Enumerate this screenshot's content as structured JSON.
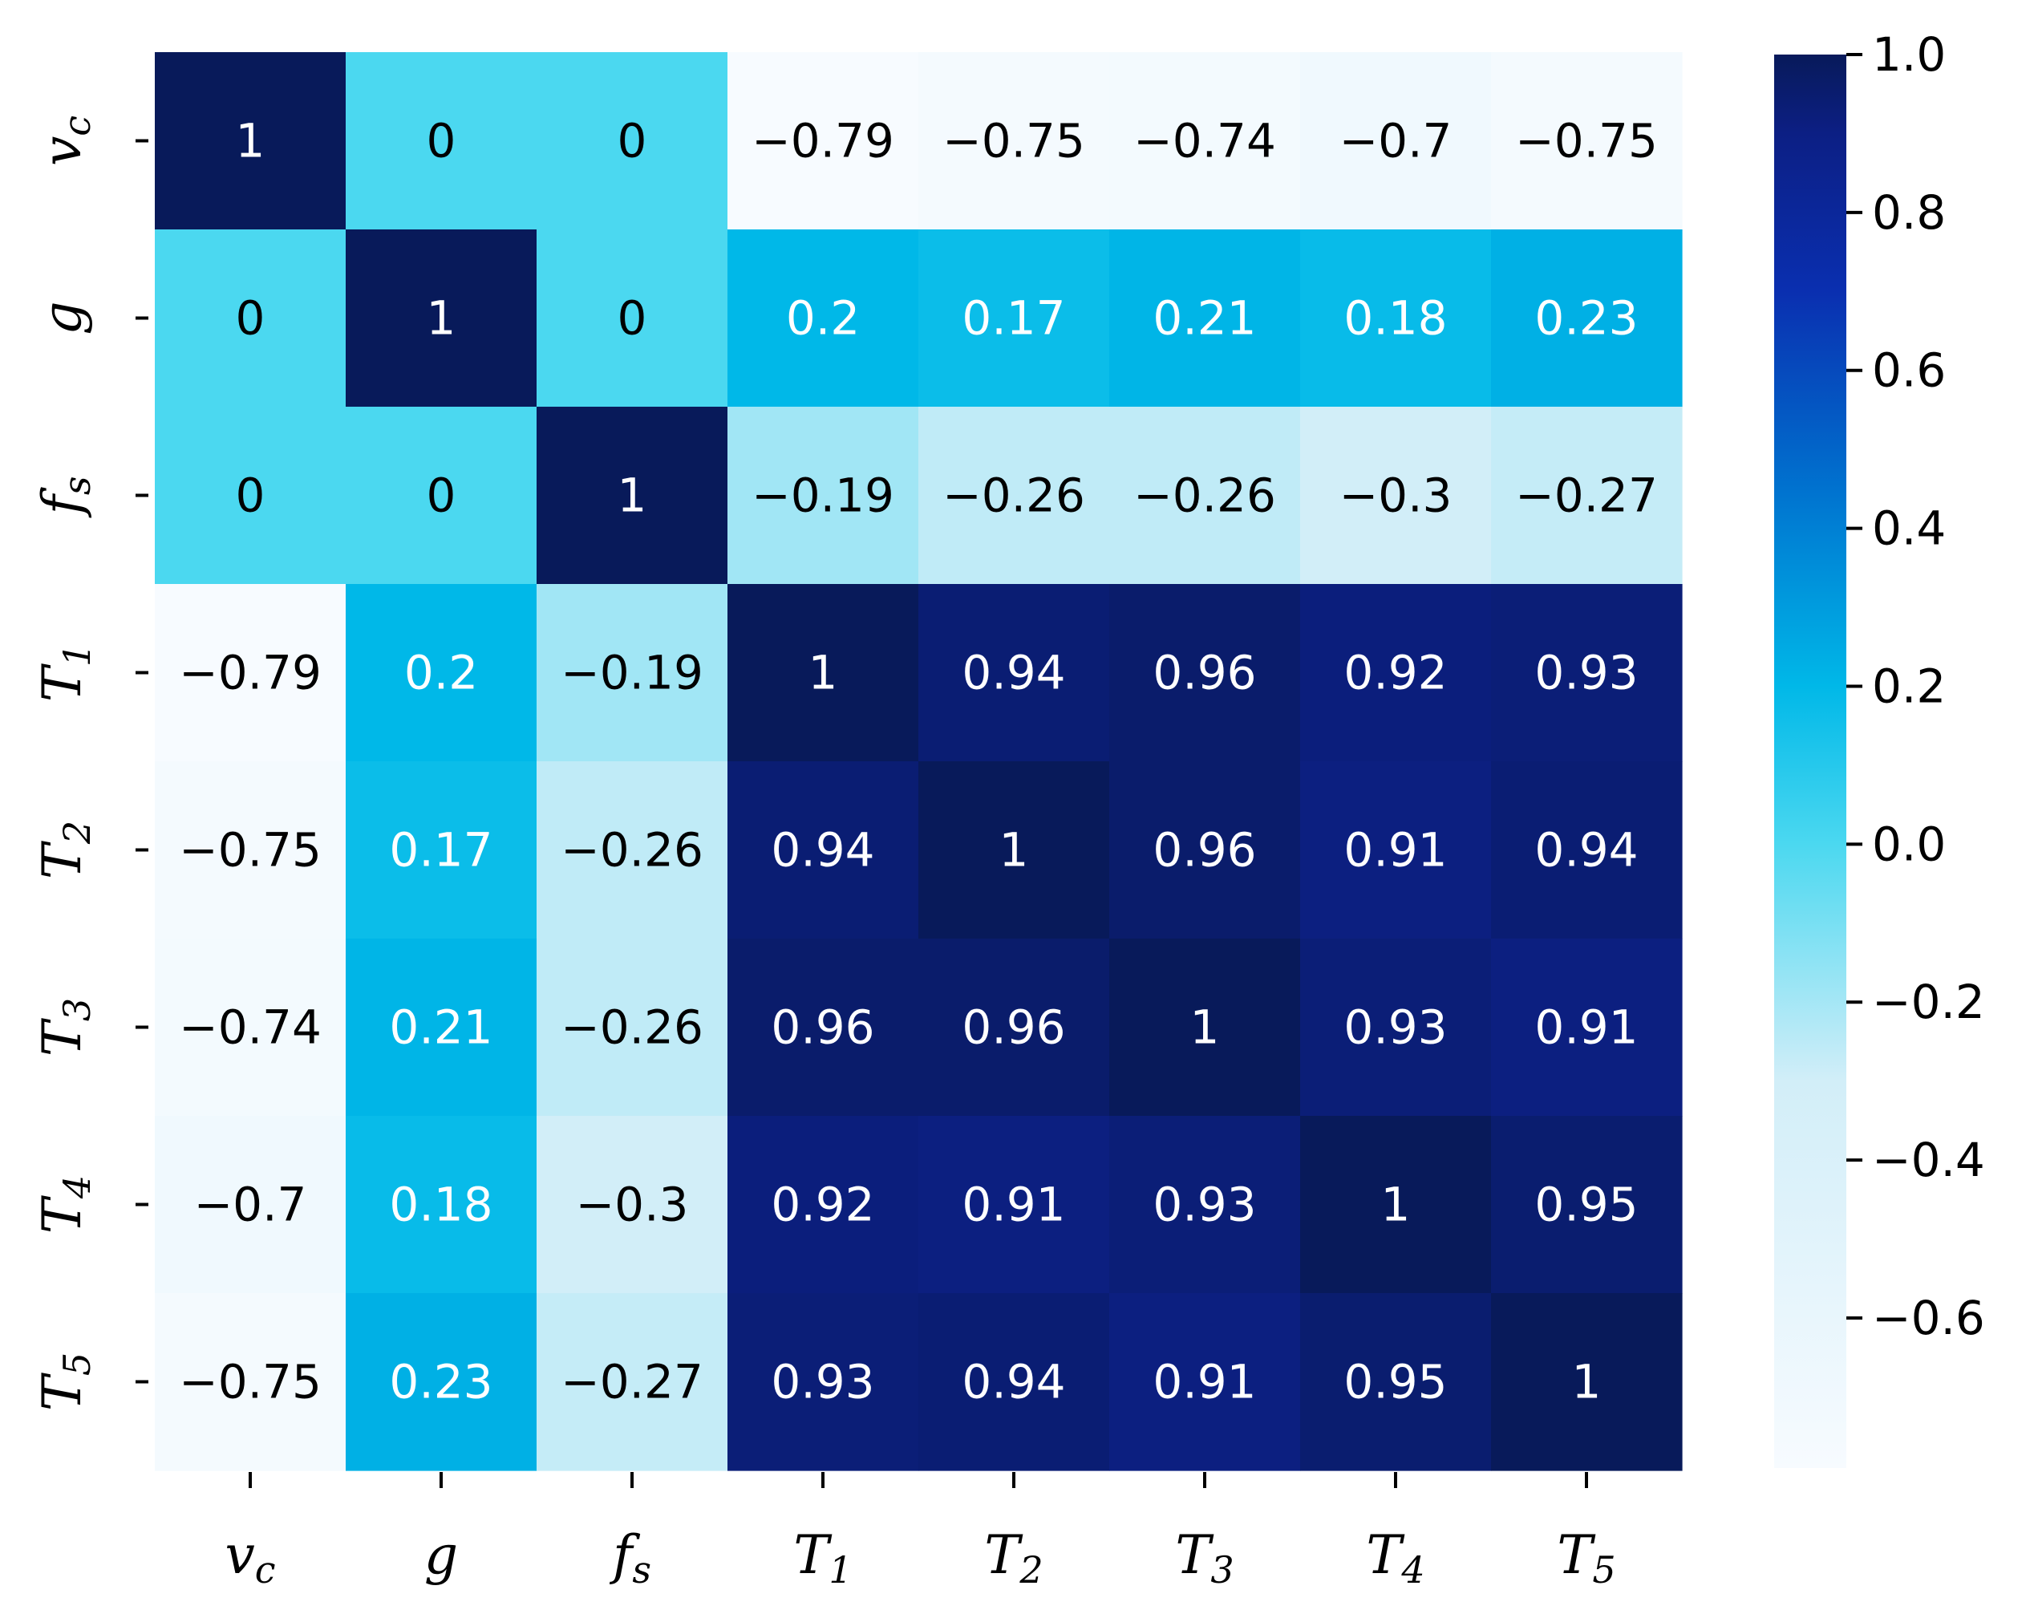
{
  "chart_data": {
    "type": "heatmap",
    "title": "",
    "row_labels": [
      {
        "base": "v",
        "sub": "c"
      },
      {
        "base": "g",
        "sub": ""
      },
      {
        "base": "f",
        "sub": "s"
      },
      {
        "base": "T",
        "sub": "1"
      },
      {
        "base": "T",
        "sub": "2"
      },
      {
        "base": "T",
        "sub": "3"
      },
      {
        "base": "T",
        "sub": "4"
      },
      {
        "base": "T",
        "sub": "5"
      }
    ],
    "col_labels": [
      {
        "base": "v",
        "sub": "c"
      },
      {
        "base": "g",
        "sub": ""
      },
      {
        "base": "f",
        "sub": "s"
      },
      {
        "base": "T",
        "sub": "1"
      },
      {
        "base": "T",
        "sub": "2"
      },
      {
        "base": "T",
        "sub": "3"
      },
      {
        "base": "T",
        "sub": "4"
      },
      {
        "base": "T",
        "sub": "5"
      }
    ],
    "values": [
      [
        1,
        0,
        0,
        -0.79,
        -0.75,
        -0.74,
        -0.7,
        -0.75
      ],
      [
        0,
        1,
        0,
        0.2,
        0.17,
        0.21,
        0.18,
        0.23
      ],
      [
        0,
        0,
        1,
        -0.19,
        -0.26,
        -0.26,
        -0.3,
        -0.27
      ],
      [
        -0.79,
        0.2,
        -0.19,
        1,
        0.94,
        0.96,
        0.92,
        0.93
      ],
      [
        -0.75,
        0.17,
        -0.26,
        0.94,
        1,
        0.96,
        0.91,
        0.94
      ],
      [
        -0.74,
        0.21,
        -0.26,
        0.96,
        0.96,
        1,
        0.93,
        0.91
      ],
      [
        -0.7,
        0.18,
        -0.3,
        0.92,
        0.91,
        0.93,
        1,
        0.95
      ],
      [
        -0.75,
        0.23,
        -0.27,
        0.93,
        0.94,
        0.91,
        0.95,
        1
      ]
    ],
    "annotations": [
      [
        "1",
        "0",
        "0",
        "−0.79",
        "−0.75",
        "−0.74",
        "−0.7",
        "−0.75"
      ],
      [
        "0",
        "1",
        "0",
        "0.2",
        "0.17",
        "0.21",
        "0.18",
        "0.23"
      ],
      [
        "0",
        "0",
        "1",
        "−0.19",
        "−0.26",
        "−0.26",
        "−0.3",
        "−0.27"
      ],
      [
        "−0.79",
        "0.2",
        "−0.19",
        "1",
        "0.94",
        "0.96",
        "0.92",
        "0.93"
      ],
      [
        "−0.75",
        "0.17",
        "−0.26",
        "0.94",
        "1",
        "0.96",
        "0.91",
        "0.94"
      ],
      [
        "−0.74",
        "0.21",
        "−0.26",
        "0.96",
        "0.96",
        "1",
        "0.93",
        "0.91"
      ],
      [
        "−0.7",
        "0.18",
        "−0.3",
        "0.92",
        "0.91",
        "0.93",
        "1",
        "0.95"
      ],
      [
        "−0.75",
        "0.23",
        "−0.27",
        "0.93",
        "0.94",
        "0.91",
        "0.95",
        "1"
      ]
    ],
    "colorbar": {
      "vmin": -0.79,
      "vmax": 1.0,
      "ticks": [
        1.0,
        0.8,
        0.6,
        0.4,
        0.2,
        0.0,
        -0.2,
        -0.4,
        -0.6
      ],
      "tick_labels": [
        "1.0",
        "0.8",
        "0.6",
        "0.4",
        "0.2",
        "0.0",
        "−0.2",
        "−0.4",
        "−0.6"
      ],
      "colormap_stops": [
        {
          "value": -0.79,
          "color": "#f7fbff"
        },
        {
          "value": -0.3,
          "color": "#d2eef8"
        },
        {
          "value": 0.0,
          "color": "#4bd8f0"
        },
        {
          "value": 0.2,
          "color": "#00b8e8"
        },
        {
          "value": 0.45,
          "color": "#0072cf"
        },
        {
          "value": 0.7,
          "color": "#0a2fb0"
        },
        {
          "value": 0.9,
          "color": "#0c1f84"
        },
        {
          "value": 1.0,
          "color": "#081a5a"
        }
      ]
    },
    "text_color_light": "#ffffff",
    "text_color_dark": "#000000",
    "grid": false,
    "legend": "colorbar-right"
  }
}
